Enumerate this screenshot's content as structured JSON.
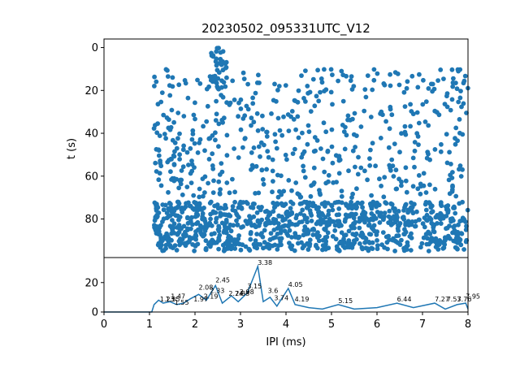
{
  "chart_data": [
    {
      "type": "scatter",
      "title": "20230502_095331UTC_V12",
      "xlabel": "",
      "ylabel": "t (s)",
      "xlim": [
        0,
        8
      ],
      "ylim": [
        98,
        -4
      ],
      "yticks": [
        0,
        20,
        40,
        60,
        80
      ],
      "y_inverted": true,
      "grid": false,
      "color": "#1f77b4",
      "clusters": [
        {
          "x_range": [
            1.1,
            8.0
          ],
          "t_range": [
            72,
            95
          ],
          "count": 950
        },
        {
          "x_range": [
            1.1,
            8.0
          ],
          "t_range": [
            10,
            70
          ],
          "count": 520
        },
        {
          "x_range": [
            2.3,
            2.7
          ],
          "t_range": [
            0,
            20
          ],
          "count": 40
        }
      ]
    },
    {
      "type": "line",
      "xlabel": "IPI (ms)",
      "ylabel": "",
      "xlim": [
        0,
        8
      ],
      "ylim": [
        0,
        37
      ],
      "xticks": [
        0,
        1,
        2,
        3,
        4,
        5,
        6,
        7,
        8
      ],
      "yticks": [
        0,
        20
      ],
      "color": "#1f77b4",
      "series": [
        {
          "x": [
            0,
            1.05,
            1.1,
            1.2,
            1.3,
            1.45,
            1.6,
            1.75,
            1.9,
            2.08,
            2.25,
            2.45,
            2.6,
            2.8,
            2.95,
            3.15,
            3.38,
            3.5,
            3.65,
            3.8,
            4.05,
            4.2,
            4.5,
            4.8,
            5.15,
            5.5,
            6.0,
            6.44,
            6.8,
            7.27,
            7.5,
            7.76,
            7.95,
            8.0
          ],
          "y": [
            0,
            0,
            5,
            8,
            6,
            7,
            5,
            6,
            9,
            12,
            8,
            18,
            6,
            11,
            7,
            13,
            31,
            7,
            10,
            4,
            16,
            5,
            3,
            2,
            5,
            2,
            3,
            6,
            3,
            6,
            2,
            5,
            6,
            2
          ]
        }
      ],
      "annotations": [
        {
          "x": 1.23,
          "y": 6,
          "label": "1.23"
        },
        {
          "x": 1.35,
          "y": 6,
          "label": "1.35"
        },
        {
          "x": 1.47,
          "y": 8,
          "label": "1.47"
        },
        {
          "x": 1.55,
          "y": 4,
          "label": "1.55"
        },
        {
          "x": 1.97,
          "y": 6,
          "label": "1.97"
        },
        {
          "x": 2.08,
          "y": 14,
          "label": "2.08"
        },
        {
          "x": 2.19,
          "y": 8,
          "label": "2.19"
        },
        {
          "x": 2.33,
          "y": 12,
          "label": "2.33"
        },
        {
          "x": 2.45,
          "y": 19,
          "label": "2.45"
        },
        {
          "x": 2.74,
          "y": 10,
          "label": "2.74"
        },
        {
          "x": 2.88,
          "y": 10,
          "label": "2.88"
        },
        {
          "x": 2.98,
          "y": 11,
          "label": "2.98"
        },
        {
          "x": 3.15,
          "y": 15,
          "label": "3.15"
        },
        {
          "x": 3.38,
          "y": 31,
          "label": "3.38"
        },
        {
          "x": 3.6,
          "y": 12,
          "label": "3.6"
        },
        {
          "x": 3.74,
          "y": 7,
          "label": "3.74"
        },
        {
          "x": 4.05,
          "y": 16,
          "label": "4.05"
        },
        {
          "x": 4.19,
          "y": 6,
          "label": "4.19"
        },
        {
          "x": 5.15,
          "y": 5,
          "label": "5.15"
        },
        {
          "x": 6.44,
          "y": 6,
          "label": "6.44"
        },
        {
          "x": 7.27,
          "y": 6,
          "label": "7.27"
        },
        {
          "x": 7.53,
          "y": 6,
          "label": "7.53"
        },
        {
          "x": 7.76,
          "y": 6,
          "label": "7.76"
        },
        {
          "x": 7.95,
          "y": 8,
          "label": "7.95"
        }
      ]
    }
  ]
}
